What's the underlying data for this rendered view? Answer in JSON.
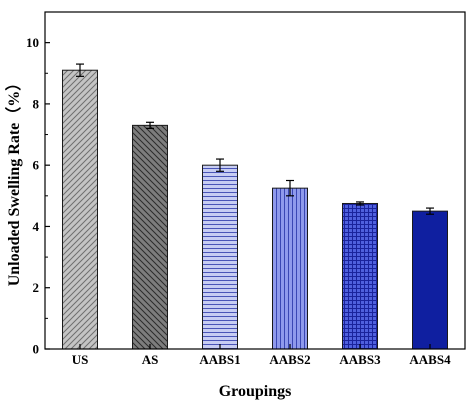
{
  "chart_data": {
    "type": "bar",
    "title": "",
    "xlabel": "Groupings",
    "ylabel": "Unloaded Swelling Rate（%）",
    "ylim": [
      0,
      11
    ],
    "yticks": [
      0,
      2,
      4,
      6,
      8,
      10
    ],
    "categories": [
      "US",
      "AS",
      "AABS1",
      "AABS2",
      "AABS3",
      "AABS4"
    ],
    "values": [
      9.1,
      7.3,
      6.0,
      5.25,
      4.75,
      4.5
    ],
    "errors": [
      0.2,
      0.1,
      0.2,
      0.25,
      0.05,
      0.1
    ],
    "grid": false,
    "legend": "none",
    "bar_styles": [
      {
        "color": "#c4c4c4",
        "pattern": "diagonal-up",
        "line": "#6f6f6f"
      },
      {
        "color": "#7d7d7d",
        "pattern": "diagonal-down",
        "line": "#2b2b2b"
      },
      {
        "color": "#c7cdf3",
        "pattern": "horizontal",
        "line": "#4a55b8"
      },
      {
        "color": "#8f9aec",
        "pattern": "vertical",
        "line": "#3a47b4"
      },
      {
        "color": "#4f60de",
        "pattern": "grid",
        "line": "#1a239c"
      },
      {
        "color": "#0f1fa0",
        "pattern": "solid",
        "line": "#0f1fa0"
      }
    ]
  }
}
